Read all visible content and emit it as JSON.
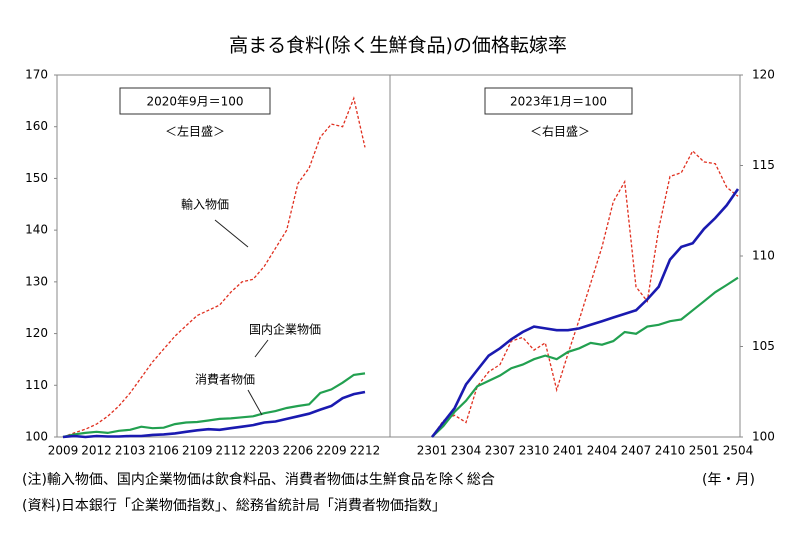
{
  "title": "高まる食料(除く生鮮食品)の価格転嫁率",
  "notes": {
    "note": "(注)輸入物価、国内企業物価は飲食料品、消費者物価は生鮮食品を除く総合",
    "unit": "(年・月)",
    "source": "(資料)日本銀行「企業物価指数」、総務省統計局「消費者物価指数」"
  },
  "chart_data": [
    {
      "type": "line",
      "subtitle": "2020年9月＝100",
      "axis_label": "＜左目盛＞",
      "yaxis": "left",
      "categories": [
        "2009",
        null,
        null,
        "2012",
        null,
        null,
        "2103",
        null,
        null,
        "2106",
        null,
        null,
        "2109",
        null,
        null,
        "2112",
        null,
        null,
        "2203",
        null,
        null,
        "2206",
        null,
        null,
        "2209",
        null,
        null,
        "2212"
      ],
      "ylim": [
        100,
        170
      ],
      "yticks": [
        100,
        110,
        120,
        130,
        140,
        150,
        160,
        170
      ],
      "series": [
        {
          "name": "輸入物価",
          "color": "#e03020",
          "dashed": true,
          "values": [
            100,
            100.8,
            101.5,
            102.5,
            104,
            106,
            108.5,
            111.5,
            114.5,
            117,
            119.5,
            121.5,
            123.5,
            124.5,
            125.5,
            128,
            130,
            130.5,
            133,
            136.5,
            140,
            149,
            152,
            158,
            160.5,
            160,
            165.5,
            156
          ]
        },
        {
          "name": "国内企業物価",
          "color": "#22a050",
          "values": [
            100,
            100.5,
            100.8,
            101,
            100.8,
            101.2,
            101.4,
            102,
            101.7,
            101.8,
            102.5,
            102.8,
            102.9,
            103.2,
            103.5,
            103.6,
            103.8,
            104,
            104.6,
            105,
            105.6,
            106,
            106.3,
            108.5,
            109.2,
            110.5,
            112,
            112.3
          ]
        },
        {
          "name": "消費者物価",
          "color": "#1a1ab0",
          "values": [
            100,
            100.2,
            100,
            100.2,
            100.1,
            100.1,
            100.2,
            100.2,
            100.4,
            100.5,
            100.7,
            101,
            101.3,
            101.5,
            101.4,
            101.7,
            102,
            102.3,
            102.8,
            103,
            103.5,
            104,
            104.5,
            105.3,
            106,
            107.5,
            108.3,
            108.7
          ]
        }
      ]
    },
    {
      "type": "line",
      "subtitle": "2023年1月＝100",
      "axis_label": "＜右目盛＞",
      "yaxis": "right",
      "categories": [
        "2301",
        null,
        null,
        "2304",
        null,
        null,
        "2307",
        null,
        null,
        "2310",
        null,
        null,
        "2401",
        null,
        null,
        "2404",
        null,
        null,
        "2407",
        null,
        null,
        "2410",
        null,
        null,
        "2501",
        null,
        null,
        "2504"
      ],
      "ylim": [
        100,
        120
      ],
      "yticks": [
        100,
        105,
        110,
        115,
        120
      ],
      "series": [
        {
          "color": "#e03020",
          "dashed": true,
          "values": [
            100,
            100.9,
            101.2,
            100.8,
            102.8,
            103.6,
            104,
            105.3,
            105.5,
            104.8,
            105.2,
            102.6,
            104.6,
            106.5,
            108.5,
            110.5,
            113,
            114.1,
            108.3,
            107.5,
            111.5,
            114.4,
            114.6,
            115.8,
            115.2,
            115.1,
            113.8,
            113.3
          ]
        },
        {
          "color": "#22a050",
          "values": [
            100,
            100.6,
            101.4,
            102,
            102.8,
            103.1,
            103.4,
            103.8,
            104,
            104.3,
            104.5,
            104.3,
            104.7,
            104.9,
            105.2,
            105.1,
            105.3,
            105.8,
            105.7,
            106.1,
            106.2,
            106.4,
            106.5,
            107,
            107.5,
            108,
            108.4,
            108.8
          ]
        },
        {
          "color": "#1a1ab0",
          "values": [
            100,
            100.8,
            101.6,
            102.9,
            103.7,
            104.5,
            104.9,
            105.4,
            105.8,
            106.1,
            106,
            105.9,
            105.9,
            106,
            106.2,
            106.4,
            106.6,
            106.8,
            107,
            107.6,
            108.3,
            109.8,
            110.5,
            110.7,
            111.5,
            112.1,
            112.8,
            113.7
          ]
        }
      ]
    }
  ]
}
